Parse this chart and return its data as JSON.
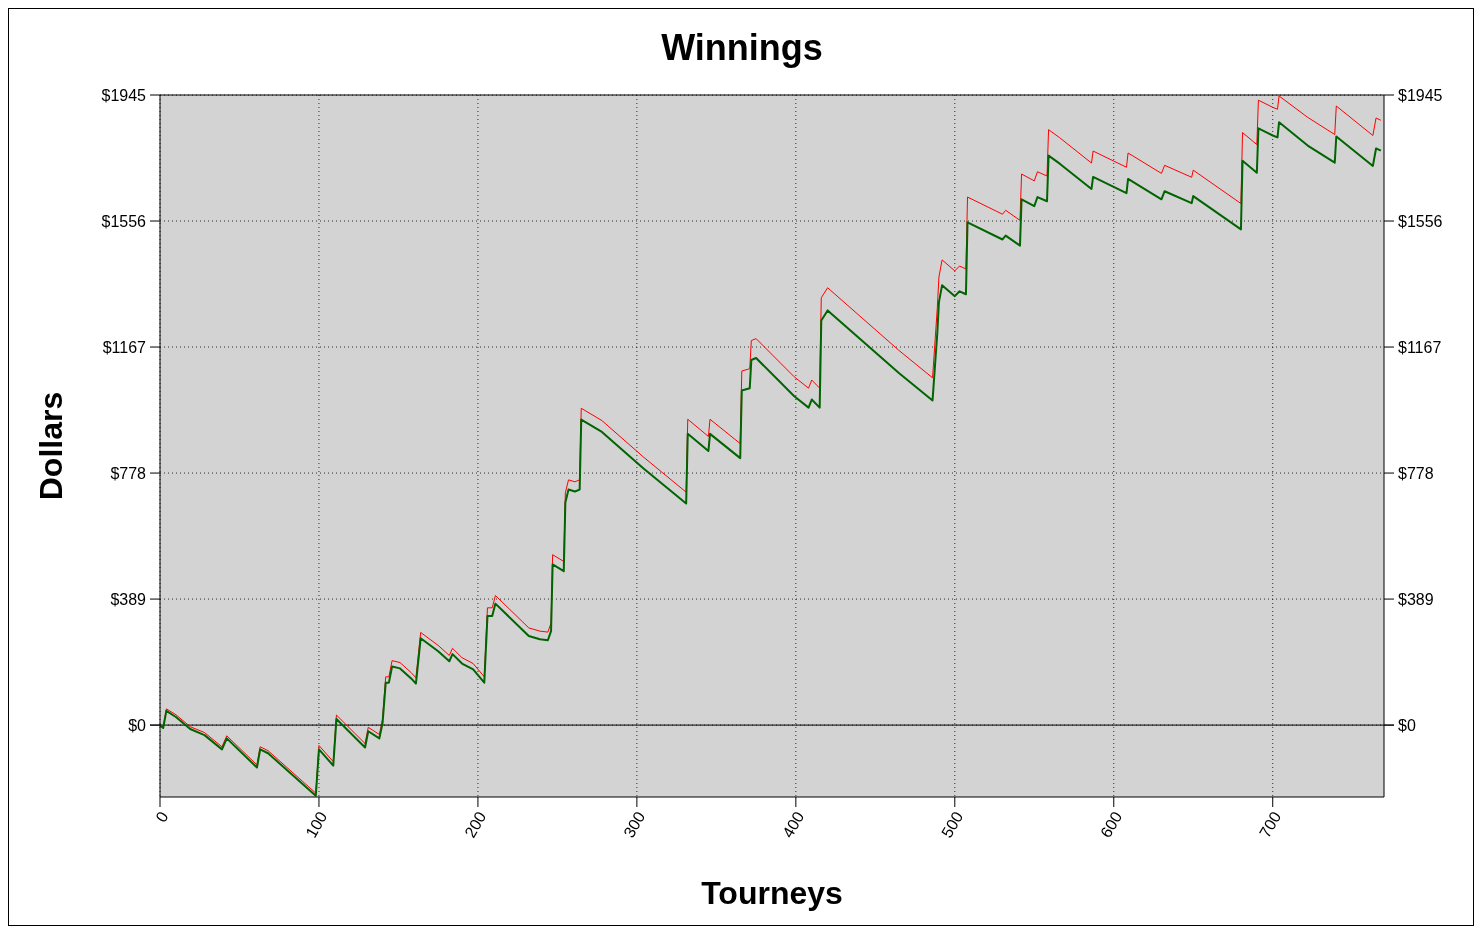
{
  "chart_data": {
    "type": "line",
    "title": "Winnings",
    "xlabel": "Tourneys",
    "ylabel": "Dollars",
    "xlim": [
      0,
      770
    ],
    "xticks": [
      0,
      100,
      200,
      300,
      400,
      500,
      600,
      700
    ],
    "ylim": [
      -222,
      1945
    ],
    "yticks": [
      {
        "value": 0,
        "label": "$0"
      },
      {
        "value": 389,
        "label": "$389"
      },
      {
        "value": 778,
        "label": "$778"
      },
      {
        "value": 1167,
        "label": "$1167"
      },
      {
        "value": 1556,
        "label": "$1556"
      },
      {
        "value": 1945,
        "label": "$1945"
      }
    ],
    "y2lim": [
      -222,
      1945
    ],
    "y2ticks": [
      {
        "value": 0,
        "label": "$0"
      },
      {
        "value": 389,
        "label": "$389"
      },
      {
        "value": 778,
        "label": "$778"
      },
      {
        "value": 1167,
        "label": "$1167"
      },
      {
        "value": 1556,
        "label": "$1556"
      },
      {
        "value": 1945,
        "label": "$1945"
      }
    ],
    "grid": true,
    "ref_lines": [
      {
        "axis": "y",
        "value": 0,
        "color": "#000000",
        "line_style": "solid"
      }
    ],
    "series": [
      {
        "color": "#ff0000",
        "x": [
          0,
          2,
          4,
          10,
          19,
          28,
          39,
          42,
          61,
          63,
          68,
          98,
          100,
          109,
          111,
          129,
          131,
          138,
          140,
          142,
          144,
          146,
          151,
          158,
          161,
          164,
          175,
          182,
          184,
          190,
          197,
          204,
          206,
          209,
          211,
          232,
          239,
          244,
          246,
          247,
          254,
          255,
          257,
          261,
          264,
          265,
          278,
          304,
          331,
          332,
          345,
          346,
          365,
          366,
          371,
          372,
          375,
          399,
          408,
          410,
          415,
          416,
          420,
          465,
          486,
          489,
          490,
          492,
          500,
          503,
          507,
          508,
          530,
          532,
          541,
          542,
          550,
          552,
          558,
          559,
          566,
          586,
          587,
          608,
          609,
          630,
          632,
          649,
          650,
          680,
          681,
          690,
          691,
          700,
          703,
          704,
          722,
          739,
          740,
          763,
          765,
          768
        ],
        "values": [
          0,
          -9,
          50,
          32,
          -5,
          -23,
          -67,
          -33,
          -123,
          -67,
          -79,
          -210,
          -63,
          -113,
          31,
          -57,
          -7,
          -29,
          18,
          149,
          149,
          199,
          193,
          162,
          146,
          286,
          246,
          215,
          237,
          208,
          190,
          149,
          362,
          362,
          400,
          300,
          290,
          287,
          315,
          526,
          505,
          717,
          757,
          751,
          757,
          978,
          940,
          828,
          719,
          944,
          891,
          944,
          869,
          1093,
          1100,
          1187,
          1193,
          1075,
          1040,
          1065,
          1040,
          1319,
          1350,
          1156,
          1072,
          1289,
          1383,
          1436,
          1402,
          1417,
          1408,
          1630,
          1577,
          1589,
          1558,
          1701,
          1680,
          1708,
          1695,
          1838,
          1813,
          1735,
          1772,
          1722,
          1766,
          1703,
          1728,
          1691,
          1713,
          1610,
          1829,
          1792,
          1929,
          1907,
          1901,
          1942,
          1876,
          1823,
          1911,
          1820,
          1874,
          1867
        ]
      },
      {
        "color": "#006400",
        "x": [
          0,
          2,
          4,
          10,
          19,
          28,
          39,
          42,
          61,
          63,
          68,
          98,
          100,
          109,
          111,
          129,
          131,
          138,
          140,
          142,
          144,
          146,
          151,
          158,
          161,
          164,
          175,
          182,
          184,
          190,
          197,
          204,
          206,
          209,
          211,
          232,
          239,
          244,
          246,
          247,
          254,
          255,
          257,
          261,
          264,
          265,
          278,
          304,
          331,
          332,
          345,
          346,
          365,
          366,
          371,
          372,
          375,
          399,
          408,
          410,
          415,
          416,
          420,
          465,
          486,
          489,
          490,
          492,
          500,
          503,
          507,
          508,
          530,
          532,
          541,
          542,
          550,
          552,
          558,
          559,
          566,
          586,
          587,
          608,
          609,
          630,
          632,
          649,
          650,
          680,
          681,
          690,
          691,
          700,
          703,
          704,
          722,
          739,
          740,
          763,
          765,
          768
        ],
        "values": [
          0,
          -9,
          44,
          25,
          -12,
          -31,
          -75,
          -41,
          -131,
          -75,
          -87,
          -218,
          -75,
          -125,
          19,
          -69,
          -19,
          -41,
          6,
          131,
          131,
          181,
          175,
          144,
          128,
          268,
          228,
          197,
          219,
          190,
          172,
          131,
          337,
          337,
          375,
          275,
          265,
          262,
          290,
          496,
          475,
          687,
          727,
          721,
          727,
          943,
          905,
          793,
          684,
          899,
          846,
          899,
          824,
          1033,
          1040,
          1127,
          1133,
          1015,
          980,
          1005,
          980,
          1249,
          1280,
          1086,
          1002,
          1211,
          1305,
          1358,
          1324,
          1339,
          1330,
          1552,
          1499,
          1511,
          1480,
          1623,
          1602,
          1630,
          1617,
          1758,
          1733,
          1655,
          1692,
          1642,
          1686,
          1623,
          1648,
          1611,
          1633,
          1530,
          1742,
          1705,
          1842,
          1820,
          1814,
          1861,
          1789,
          1736,
          1817,
          1726,
          1780,
          1773
        ]
      }
    ]
  }
}
